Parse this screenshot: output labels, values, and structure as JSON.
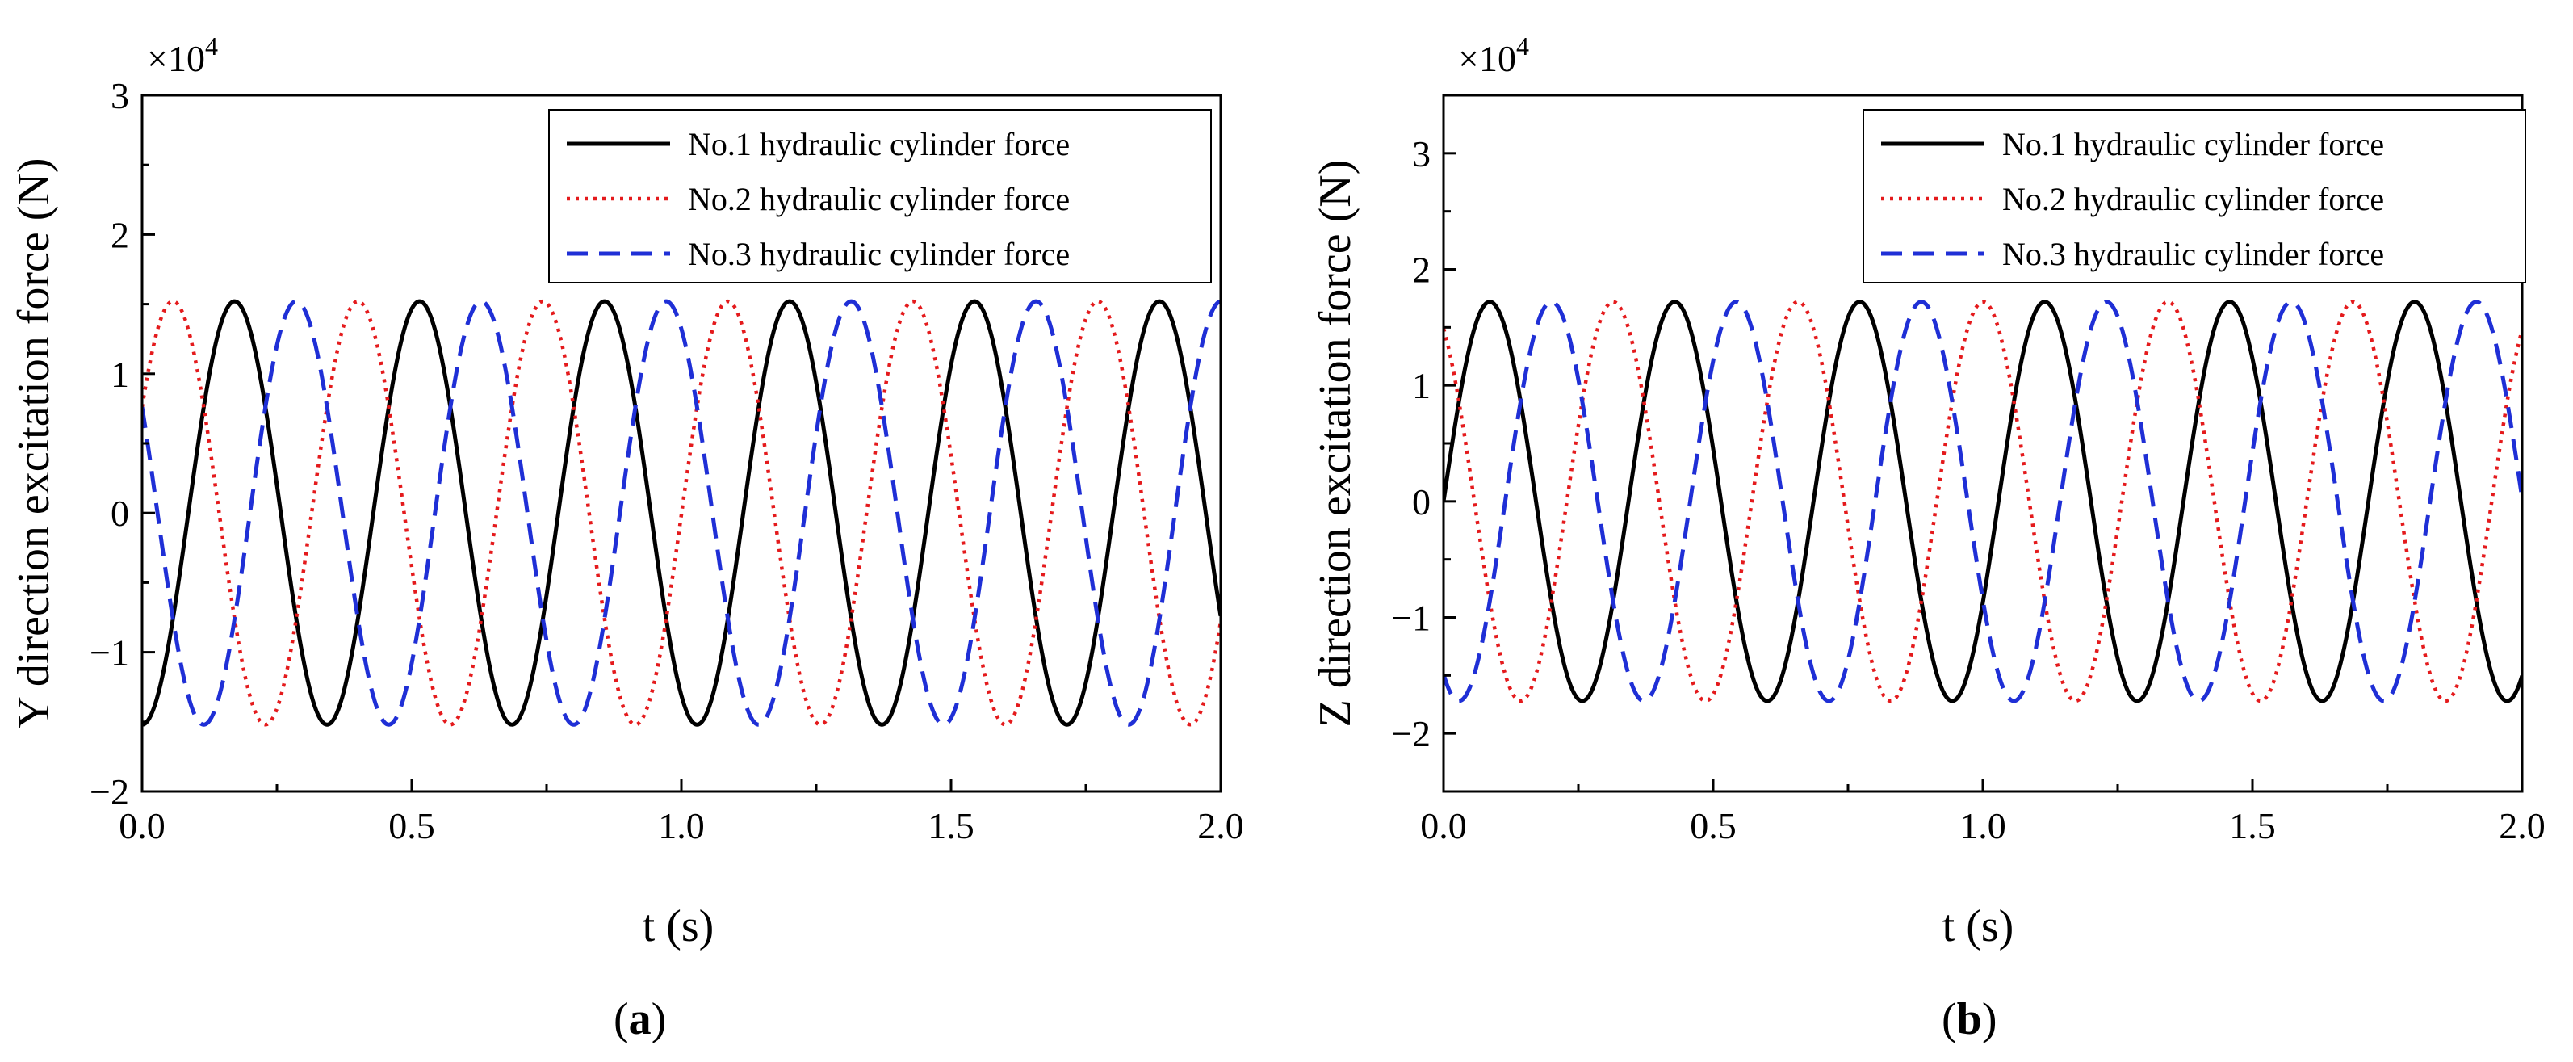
{
  "chart_data": [
    {
      "type": "line",
      "panel_label": {
        "open": "(",
        "letter": "a",
        "close": ")"
      },
      "xlabel": "t (s)",
      "ylabel": "Y direction excitation force (N)",
      "multiplier": {
        "base": "×10",
        "exp": "4"
      },
      "xlim": [
        0,
        2
      ],
      "ylim": [
        -2,
        3
      ],
      "xticks": [
        0.0,
        0.5,
        1.0,
        1.5,
        2.0
      ],
      "xtick_labels": [
        "0.0",
        "0.5",
        "1.0",
        "1.5",
        "2.0"
      ],
      "yticks": [
        -2,
        -1,
        0,
        1,
        2,
        3
      ],
      "ytick_labels": [
        "−2",
        "−1",
        "0",
        "1",
        "2",
        "3"
      ],
      "legend_position": "top-right",
      "period_s": 0.343,
      "series": [
        {
          "name": "No.1 hydraulic cylinder force",
          "amplitude": 1.52,
          "phase_deg": -90,
          "color": "#000000",
          "dash": "solid"
        },
        {
          "name": "No.2 hydraulic cylinder force",
          "amplitude": 1.52,
          "phase_deg": 30,
          "color": "#e41a1c",
          "dash": "dotted"
        },
        {
          "name": "No.3 hydraulic cylinder force",
          "amplitude": 1.52,
          "phase_deg": 150,
          "color": "#1f2fd6",
          "dash": "dashed"
        }
      ]
    },
    {
      "type": "line",
      "panel_label": {
        "open": "(",
        "letter": "b",
        "close": ")"
      },
      "xlabel": "t (s)",
      "ylabel": "Z direction excitation force (N)",
      "multiplier": {
        "base": "×10",
        "exp": "4"
      },
      "xlim": [
        0,
        2
      ],
      "ylim": [
        -2.5,
        3.5
      ],
      "xticks": [
        0.0,
        0.5,
        1.0,
        1.5,
        2.0
      ],
      "xtick_labels": [
        "0.0",
        "0.5",
        "1.0",
        "1.5",
        "2.0"
      ],
      "yticks": [
        -2,
        -1,
        0,
        1,
        2,
        3
      ],
      "ytick_labels": [
        "−2",
        "−1",
        "0",
        "1",
        "2",
        "3"
      ],
      "legend_position": "top-right",
      "period_s": 0.343,
      "series": [
        {
          "name": "No.1 hydraulic cylinder force",
          "amplitude": 1.72,
          "phase_deg": 0,
          "color": "#000000",
          "dash": "solid"
        },
        {
          "name": "No.2 hydraulic cylinder force",
          "amplitude": 1.72,
          "phase_deg": 120,
          "color": "#e41a1c",
          "dash": "dotted"
        },
        {
          "name": "No.3 hydraulic cylinder force",
          "amplitude": 1.72,
          "phase_deg": 240,
          "color": "#1f2fd6",
          "dash": "dashed"
        }
      ]
    }
  ]
}
